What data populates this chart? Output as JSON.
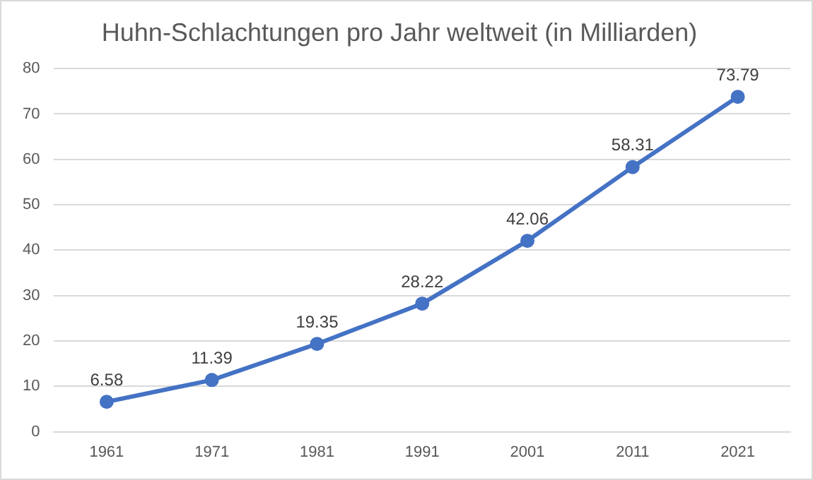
{
  "chart_data": {
    "type": "line",
    "title": "Huhn-Schlachtungen pro Jahr weltweit (in Milliarden)",
    "categories": [
      "1961",
      "1971",
      "1981",
      "1991",
      "2001",
      "2011",
      "2021"
    ],
    "series": [
      {
        "color": "#4472c4",
        "values": [
          6.58,
          11.39,
          19.35,
          28.22,
          42.06,
          58.31,
          73.79
        ]
      }
    ],
    "ylim": [
      0,
      80
    ],
    "yticks": [
      0,
      10,
      20,
      30,
      40,
      50,
      60,
      70,
      80
    ],
    "grid": "y",
    "legend": false,
    "marker": "circle",
    "line_style": "solid",
    "data_labels": true
  }
}
